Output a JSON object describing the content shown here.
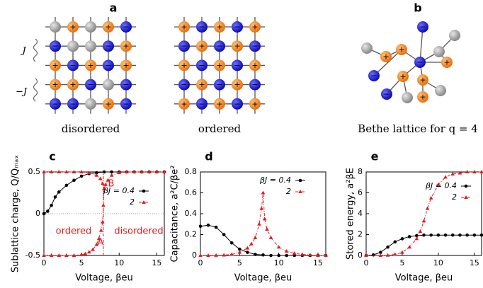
{
  "figure": {
    "panel_a": "a",
    "panel_b": "b",
    "coupling_pos": "J",
    "coupling_neg": "−J",
    "lattices": [
      {
        "label": "disordered",
        "sites": [
          [
            null,
            "+",
            null,
            "+",
            "−"
          ],
          [
            "−",
            null,
            null,
            "−",
            "+"
          ],
          [
            "+",
            "−",
            "+",
            "−",
            "+"
          ],
          [
            "+",
            "+",
            "−",
            null,
            "−"
          ],
          [
            "−",
            "−",
            null,
            "+",
            "−"
          ]
        ]
      },
      {
        "label": "ordered",
        "sites": [
          [
            "+",
            "−",
            "+",
            "−",
            "+"
          ],
          [
            "−",
            "+",
            "−",
            "+",
            "−"
          ],
          [
            "+",
            "−",
            "+",
            "−",
            "+"
          ],
          [
            "−",
            "+",
            "−",
            "+",
            "−"
          ],
          [
            "+",
            "−",
            "+",
            "−",
            "+"
          ]
        ]
      }
    ],
    "bethe": {
      "label": "Bethe lattice for q = 4",
      "nodes": [
        "−",
        "−",
        "+",
        null,
        "+",
        "+",
        "+",
        null,
        "−",
        "−",
        "+",
        null,
        null,
        "+",
        null
      ]
    }
  },
  "chart_data": [
    {
      "type": "line",
      "panel": "c",
      "xlabel": "Voltage, βeu",
      "ylabel": "Sublattice charge, Q/Qₘₐₓ",
      "xlim": [
        0,
        16
      ],
      "xticks": [
        0,
        5,
        10,
        15
      ],
      "ylim": [
        -0.5,
        0.5
      ],
      "yticks": [
        -0.5,
        0,
        0.5
      ],
      "hline": 0,
      "annotations": [
        "B",
        "A",
        "ordered",
        "disordered"
      ],
      "annotation_color": "#e31a1c",
      "series": [
        {
          "name": "βJ = 0.4",
          "color": "#000000",
          "marker": "circle",
          "x": [
            0,
            0.5,
            1,
            1.5,
            2,
            3,
            4,
            5,
            6,
            7,
            8,
            9,
            10,
            11,
            12,
            13,
            14,
            15,
            16
          ],
          "values": [
            0,
            0.03,
            0.1,
            0.2,
            0.26,
            0.34,
            0.4,
            0.45,
            0.48,
            0.49,
            0.5,
            0.5,
            0.5,
            0.5,
            0.5,
            0.5,
            0.5,
            0.5,
            0.5
          ]
        },
        {
          "name": "2",
          "color": "#e31a1c",
          "marker": "triangle",
          "dash": true,
          "x": [
            0,
            1,
            2,
            3,
            4,
            5,
            5.5,
            6,
            6.5,
            7,
            7.3,
            7.6,
            7.8,
            7.9,
            8,
            8.2,
            8.5,
            9,
            10,
            11,
            12,
            13,
            14,
            15,
            16
          ],
          "values": [
            -0.5,
            -0.5,
            -0.5,
            -0.5,
            -0.5,
            -0.49,
            -0.48,
            -0.46,
            -0.43,
            -0.37,
            -0.3,
            -0.2,
            -0.1,
            0.1,
            0.3,
            0.35,
            0.4,
            0.46,
            0.49,
            0.5,
            0.5,
            0.5,
            0.5,
            0.5,
            0.5
          ]
        },
        {
          "color": "#e31a1c",
          "marker": "triangle",
          "dash": true,
          "x": [
            0,
            1,
            2,
            3,
            4,
            5,
            6,
            7,
            7.5,
            7.8,
            8
          ],
          "values": [
            0.5,
            0.5,
            0.5,
            0.5,
            0.5,
            0.5,
            0.49,
            0.46,
            0.42,
            0.36,
            0.3
          ]
        },
        {
          "color": "#e31a1c",
          "dash": true,
          "x": [
            7.9,
            7.9
          ],
          "values": [
            -0.5,
            0.5
          ]
        }
      ]
    },
    {
      "type": "line",
      "panel": "d",
      "xlabel": "Voltage, βeu",
      "ylabel": "Capacitance, a²C/βe²",
      "xlim": [
        0,
        16
      ],
      "xticks": [
        0,
        5,
        10,
        15
      ],
      "ylim": [
        0,
        0.8
      ],
      "yticks": [
        0,
        0.2,
        0.4,
        0.6,
        0.8
      ],
      "series": [
        {
          "name": "βJ = 0.4",
          "color": "#000000",
          "marker": "circle",
          "x": [
            0,
            1,
            2,
            3,
            4,
            5,
            6,
            7,
            8,
            9,
            10,
            11,
            12,
            13,
            14,
            15,
            16
          ],
          "values": [
            0.28,
            0.29,
            0.27,
            0.2,
            0.12,
            0.06,
            0.03,
            0.01,
            0.005,
            0,
            0,
            0,
            0,
            0,
            0,
            0,
            0
          ]
        },
        {
          "name": "2",
          "color": "#e31a1c",
          "marker": "triangle",
          "dash": true,
          "x": [
            0,
            1,
            2,
            3,
            4,
            5,
            6,
            6.5,
            7,
            7.5,
            7.8,
            8,
            8.2,
            8.5,
            9,
            10,
            11,
            12,
            13,
            14,
            15,
            16
          ],
          "values": [
            0,
            0,
            0.001,
            0.003,
            0.01,
            0.03,
            0.07,
            0.11,
            0.17,
            0.3,
            0.45,
            0.6,
            0.35,
            0.25,
            0.17,
            0.08,
            0.04,
            0.02,
            0.01,
            0.005,
            0,
            0
          ]
        }
      ]
    },
    {
      "type": "line",
      "panel": "e",
      "xlabel": "Voltage, βeu",
      "ylabel": "Stored energy, a²βE",
      "xlim": [
        0,
        16
      ],
      "xticks": [
        0,
        5,
        10,
        15
      ],
      "ylim": [
        0,
        8
      ],
      "yticks": [
        0,
        2,
        4,
        6,
        8
      ],
      "series": [
        {
          "name": "βJ = 0.4",
          "color": "#000000",
          "marker": "circle",
          "x": [
            0,
            1,
            2,
            3,
            4,
            5,
            6,
            7,
            8,
            9,
            10,
            11,
            12,
            13,
            14,
            15,
            16
          ],
          "values": [
            0,
            0.05,
            0.3,
            0.8,
            1.3,
            1.6,
            1.8,
            1.9,
            1.95,
            1.95,
            1.95,
            1.95,
            1.95,
            1.95,
            1.95,
            1.95,
            1.95
          ]
        },
        {
          "name": "2",
          "color": "#e31a1c",
          "marker": "triangle",
          "dash": true,
          "x": [
            0,
            2,
            3,
            4,
            5,
            6,
            7,
            7.5,
            8,
            8.5,
            9,
            10,
            11,
            12,
            13,
            14,
            15,
            16
          ],
          "values": [
            0,
            0,
            0.02,
            0.1,
            0.3,
            0.8,
            1.6,
            2.3,
            3.3,
            4.5,
            5.5,
            6.8,
            7.5,
            7.8,
            7.9,
            8,
            8,
            8
          ]
        }
      ]
    }
  ]
}
